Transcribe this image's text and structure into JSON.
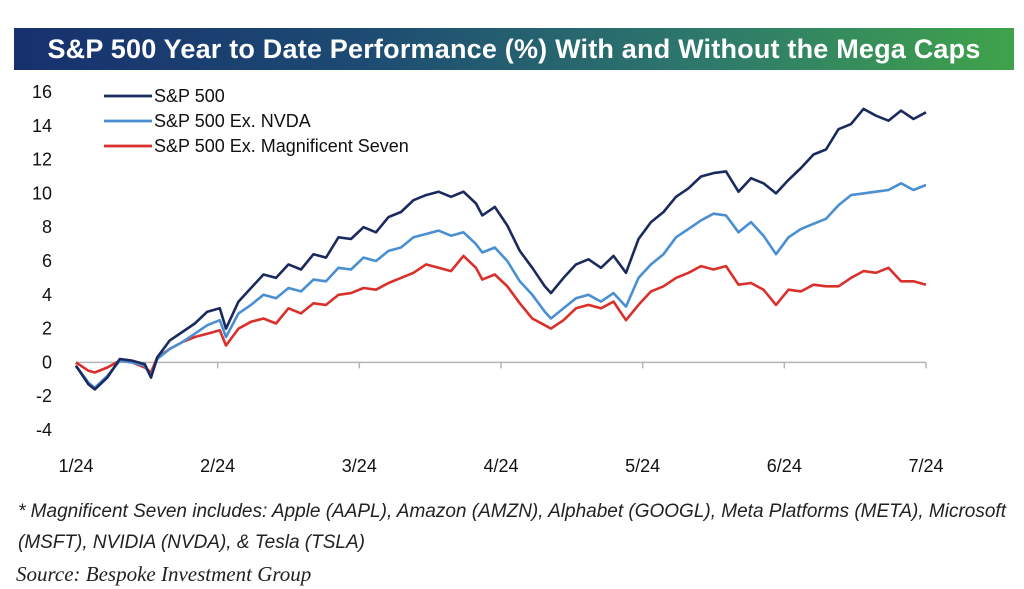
{
  "title": "S&P 500 Year to Date Performance (%) With and Without the Mega Caps",
  "footnote": "* Magnificent Seven includes: Apple (AAPL), Amazon (AMZN), Alphabet (GOOGL), Meta Platforms (META), Microsoft (MSFT), NVIDIA (NVDA), & Tesla (TSLA)",
  "source": "Source:  Bespoke Investment Group",
  "chart_data": {
    "type": "line",
    "title": "S&P 500 Year to Date Performance (%) With and Without the Mega Caps",
    "xlabel": "",
    "ylabel": "",
    "ylim": [
      -4,
      16
    ],
    "yticks": [
      16,
      14,
      12,
      10,
      8,
      6,
      4,
      2,
      0,
      -2,
      -4
    ],
    "xticks": [
      "1/24",
      "2/24",
      "3/24",
      "4/24",
      "5/24",
      "6/24",
      "7/24"
    ],
    "legend_position": "top-left",
    "grid": false,
    "series": [
      {
        "name": "S&P 500",
        "color": "#1b2a5e",
        "points": [
          [
            0,
            -0.2
          ],
          [
            2,
            -1.3
          ],
          [
            3,
            -1.6
          ],
          [
            5,
            -0.9
          ],
          [
            7,
            0.2
          ],
          [
            9,
            0.1
          ],
          [
            11,
            -0.1
          ],
          [
            12,
            -0.9
          ],
          [
            13,
            0.3
          ],
          [
            15,
            1.3
          ],
          [
            17,
            1.8
          ],
          [
            19,
            2.3
          ],
          [
            21,
            3.0
          ],
          [
            23,
            3.2
          ],
          [
            24,
            2.0
          ],
          [
            26,
            3.6
          ],
          [
            28,
            4.4
          ],
          [
            30,
            5.2
          ],
          [
            32,
            5.0
          ],
          [
            34,
            5.8
          ],
          [
            36,
            5.5
          ],
          [
            38,
            6.4
          ],
          [
            40,
            6.2
          ],
          [
            42,
            7.4
          ],
          [
            44,
            7.3
          ],
          [
            46,
            8.0
          ],
          [
            48,
            7.7
          ],
          [
            50,
            8.6
          ],
          [
            52,
            8.9
          ],
          [
            54,
            9.6
          ],
          [
            56,
            9.9
          ],
          [
            58,
            10.1
          ],
          [
            60,
            9.8
          ],
          [
            62,
            10.1
          ],
          [
            64,
            9.4
          ],
          [
            65,
            8.7
          ],
          [
            67,
            9.2
          ],
          [
            69,
            8.1
          ],
          [
            71,
            6.6
          ],
          [
            73,
            5.6
          ],
          [
            75,
            4.5
          ],
          [
            76,
            4.1
          ],
          [
            78,
            5.0
          ],
          [
            80,
            5.8
          ],
          [
            82,
            6.1
          ],
          [
            84,
            5.6
          ],
          [
            86,
            6.3
          ],
          [
            88,
            5.3
          ],
          [
            90,
            7.3
          ],
          [
            92,
            8.3
          ],
          [
            94,
            8.9
          ],
          [
            96,
            9.8
          ],
          [
            98,
            10.3
          ],
          [
            100,
            11.0
          ],
          [
            102,
            11.2
          ],
          [
            104,
            11.3
          ],
          [
            106,
            10.1
          ],
          [
            108,
            10.9
          ],
          [
            110,
            10.6
          ],
          [
            112,
            10.0
          ],
          [
            114,
            10.8
          ],
          [
            116,
            11.5
          ],
          [
            118,
            12.3
          ],
          [
            120,
            12.6
          ],
          [
            122,
            13.8
          ],
          [
            124,
            14.1
          ],
          [
            126,
            15.0
          ],
          [
            128,
            14.6
          ],
          [
            130,
            14.3
          ],
          [
            132,
            14.9
          ],
          [
            134,
            14.4
          ],
          [
            136,
            14.8
          ]
        ]
      },
      {
        "name": "S&P 500 Ex. NVDA",
        "color": "#4a8fd2",
        "points": [
          [
            0,
            -0.2
          ],
          [
            2,
            -1.2
          ],
          [
            3,
            -1.5
          ],
          [
            5,
            -0.8
          ],
          [
            7,
            0.1
          ],
          [
            9,
            0.0
          ],
          [
            11,
            -0.2
          ],
          [
            12,
            -0.8
          ],
          [
            13,
            0.2
          ],
          [
            15,
            0.8
          ],
          [
            17,
            1.2
          ],
          [
            19,
            1.7
          ],
          [
            21,
            2.2
          ],
          [
            23,
            2.5
          ],
          [
            24,
            1.5
          ],
          [
            26,
            2.9
          ],
          [
            28,
            3.4
          ],
          [
            30,
            4.0
          ],
          [
            32,
            3.8
          ],
          [
            34,
            4.4
          ],
          [
            36,
            4.2
          ],
          [
            38,
            4.9
          ],
          [
            40,
            4.8
          ],
          [
            42,
            5.6
          ],
          [
            44,
            5.5
          ],
          [
            46,
            6.2
          ],
          [
            48,
            6.0
          ],
          [
            50,
            6.6
          ],
          [
            52,
            6.8
          ],
          [
            54,
            7.4
          ],
          [
            56,
            7.6
          ],
          [
            58,
            7.8
          ],
          [
            60,
            7.5
          ],
          [
            62,
            7.7
          ],
          [
            64,
            7.0
          ],
          [
            65,
            6.5
          ],
          [
            67,
            6.8
          ],
          [
            69,
            6.0
          ],
          [
            71,
            4.8
          ],
          [
            73,
            4.0
          ],
          [
            75,
            3.0
          ],
          [
            76,
            2.6
          ],
          [
            78,
            3.2
          ],
          [
            80,
            3.8
          ],
          [
            82,
            4.0
          ],
          [
            84,
            3.6
          ],
          [
            86,
            4.1
          ],
          [
            88,
            3.3
          ],
          [
            90,
            5.0
          ],
          [
            92,
            5.8
          ],
          [
            94,
            6.4
          ],
          [
            96,
            7.4
          ],
          [
            98,
            7.9
          ],
          [
            100,
            8.4
          ],
          [
            102,
            8.8
          ],
          [
            104,
            8.7
          ],
          [
            106,
            7.7
          ],
          [
            108,
            8.3
          ],
          [
            110,
            7.5
          ],
          [
            112,
            6.4
          ],
          [
            114,
            7.4
          ],
          [
            116,
            7.9
          ],
          [
            118,
            8.2
          ],
          [
            120,
            8.5
          ],
          [
            122,
            9.3
          ],
          [
            124,
            9.9
          ],
          [
            126,
            10.0
          ],
          [
            128,
            10.1
          ],
          [
            130,
            10.2
          ],
          [
            132,
            10.6
          ],
          [
            134,
            10.2
          ],
          [
            136,
            10.5
          ]
        ]
      },
      {
        "name": "S&P 500 Ex. Magnificent Seven",
        "color": "#d9302b",
        "points": [
          [
            0,
            0.0
          ],
          [
            2,
            -0.5
          ],
          [
            3,
            -0.6
          ],
          [
            5,
            -0.3
          ],
          [
            7,
            0.1
          ],
          [
            9,
            0.0
          ],
          [
            11,
            -0.3
          ],
          [
            12,
            -0.6
          ],
          [
            13,
            0.3
          ],
          [
            15,
            0.8
          ],
          [
            17,
            1.2
          ],
          [
            19,
            1.5
          ],
          [
            21,
            1.7
          ],
          [
            23,
            1.9
          ],
          [
            24,
            1.0
          ],
          [
            26,
            2.0
          ],
          [
            28,
            2.4
          ],
          [
            30,
            2.6
          ],
          [
            32,
            2.3
          ],
          [
            34,
            3.2
          ],
          [
            36,
            2.9
          ],
          [
            38,
            3.5
          ],
          [
            40,
            3.4
          ],
          [
            42,
            4.0
          ],
          [
            44,
            4.1
          ],
          [
            46,
            4.4
          ],
          [
            48,
            4.3
          ],
          [
            50,
            4.7
          ],
          [
            52,
            5.0
          ],
          [
            54,
            5.3
          ],
          [
            56,
            5.8
          ],
          [
            58,
            5.6
          ],
          [
            60,
            5.4
          ],
          [
            62,
            6.3
          ],
          [
            64,
            5.6
          ],
          [
            65,
            4.9
          ],
          [
            67,
            5.2
          ],
          [
            69,
            4.5
          ],
          [
            71,
            3.5
          ],
          [
            73,
            2.6
          ],
          [
            75,
            2.2
          ],
          [
            76,
            2.0
          ],
          [
            78,
            2.5
          ],
          [
            80,
            3.2
          ],
          [
            82,
            3.4
          ],
          [
            84,
            3.2
          ],
          [
            86,
            3.6
          ],
          [
            88,
            2.5
          ],
          [
            90,
            3.4
          ],
          [
            92,
            4.2
          ],
          [
            94,
            4.5
          ],
          [
            96,
            5.0
          ],
          [
            98,
            5.3
          ],
          [
            100,
            5.7
          ],
          [
            102,
            5.5
          ],
          [
            104,
            5.7
          ],
          [
            106,
            4.6
          ],
          [
            108,
            4.7
          ],
          [
            110,
            4.3
          ],
          [
            112,
            3.4
          ],
          [
            114,
            4.3
          ],
          [
            116,
            4.2
          ],
          [
            118,
            4.6
          ],
          [
            120,
            4.5
          ],
          [
            122,
            4.5
          ],
          [
            124,
            5.0
          ],
          [
            126,
            5.4
          ],
          [
            128,
            5.3
          ],
          [
            130,
            5.6
          ],
          [
            132,
            4.8
          ],
          [
            134,
            4.8
          ],
          [
            136,
            4.6
          ]
        ]
      }
    ]
  }
}
